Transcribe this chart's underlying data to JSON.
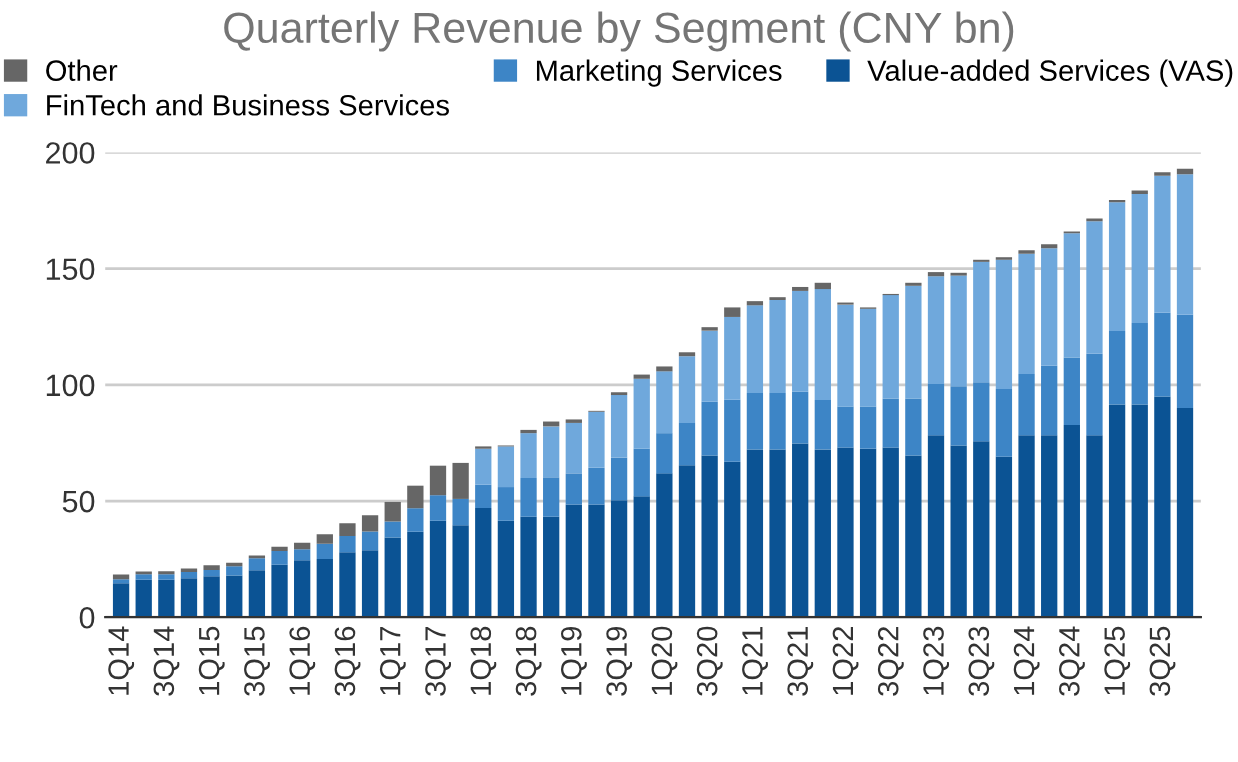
{
  "chart_data": {
    "type": "bar",
    "stacked": true,
    "title": "Quarterly Revenue by Segment (CNY bn)",
    "categories": [
      "1Q14",
      null,
      "3Q14",
      null,
      "1Q15",
      null,
      "3Q15",
      null,
      "1Q16",
      null,
      "3Q16",
      null,
      "1Q17",
      null,
      "3Q17",
      null,
      "1Q18",
      null,
      "3Q18",
      null,
      "1Q19",
      null,
      "3Q19",
      null,
      "1Q20",
      null,
      "3Q20",
      null,
      "1Q21",
      null,
      "3Q21",
      null,
      "1Q22",
      null,
      "3Q22",
      null,
      "1Q23",
      null,
      "3Q23",
      null,
      "1Q24",
      null,
      "3Q24",
      null,
      "1Q25",
      null,
      "3Q25",
      null
    ],
    "series": [
      {
        "name": "Value-added Services (VAS)",
        "color": "#0b5394",
        "values": [
          14.6,
          16.1,
          16.1,
          16.8,
          17.6,
          17.9,
          20.2,
          22.6,
          24.5,
          25.0,
          28.0,
          28.8,
          34.3,
          36.8,
          41.5,
          39.6,
          47,
          41.5,
          43.2,
          43.2,
          48.5,
          48.5,
          50.3,
          52,
          61.9,
          65.4,
          69.6,
          66.9,
          72.2,
          72.2,
          74.8,
          72.2,
          73,
          72.5,
          73,
          69.6,
          78.3,
          73.9,
          75.7,
          69,
          78.3,
          78.3,
          82.7,
          78.3,
          91.5,
          91.5,
          95,
          90
        ]
      },
      {
        "name": "Marketing Services",
        "color": "#3d85c6",
        "values": [
          1.7,
          2.4,
          2.4,
          2.7,
          2.7,
          4.0,
          5.2,
          5.9,
          4.7,
          6.6,
          7.0,
          8.1,
          6.9,
          10.1,
          11.0,
          11.3,
          10,
          14.5,
          16.7,
          17,
          13.4,
          15.8,
          18.4,
          20.5,
          17.3,
          18.2,
          23.1,
          26.7,
          24.3,
          24.3,
          22.2,
          21.3,
          17.6,
          18.1,
          21.1,
          24.5,
          22,
          25.5,
          25.4,
          29.2,
          26.3,
          29.9,
          29,
          35.1,
          31.6,
          35.1,
          36,
          40.1
        ]
      },
      {
        "name": "FinTech and Business Services",
        "color": "#6fa8dc",
        "values": [
          0,
          0,
          0,
          0,
          0,
          0,
          0,
          0,
          0,
          0,
          0,
          0,
          0,
          0,
          0,
          0,
          15.5,
          17.5,
          19.3,
          21.9,
          21.7,
          24.1,
          26.9,
          30.1,
          26.6,
          28.7,
          30.6,
          35.6,
          37.7,
          40,
          43.4,
          47.7,
          43.9,
          42.1,
          44.5,
          48.5,
          46.4,
          47.6,
          51.8,
          55.6,
          51.8,
          50.6,
          53.5,
          57,
          55.5,
          55.5,
          59,
          60.5
        ]
      },
      {
        "name": "Other",
        "color": "#666666",
        "values": [
          2.1,
          1.2,
          1.3,
          1.5,
          2.1,
          1.5,
          1.2,
          1.8,
          2.8,
          4.1,
          5.4,
          7.0,
          8.4,
          9.7,
          12.7,
          15.5,
          1,
          0.4,
          1.4,
          2.1,
          1.5,
          0.4,
          1.2,
          1.8,
          2.1,
          1.7,
          1.5,
          4.1,
          1.8,
          1.2,
          1.7,
          2.7,
          0.9,
          0.6,
          0.5,
          1.3,
          1.8,
          1.2,
          0.9,
          1.1,
          1.5,
          1.7,
          0.8,
          1.2,
          0.9,
          1.5,
          1.5,
          2.4
        ]
      }
    ],
    "ylim": [
      0,
      200
    ],
    "yticks": [
      0,
      50,
      100,
      150,
      200
    ],
    "grid": "y",
    "legend": "top"
  }
}
